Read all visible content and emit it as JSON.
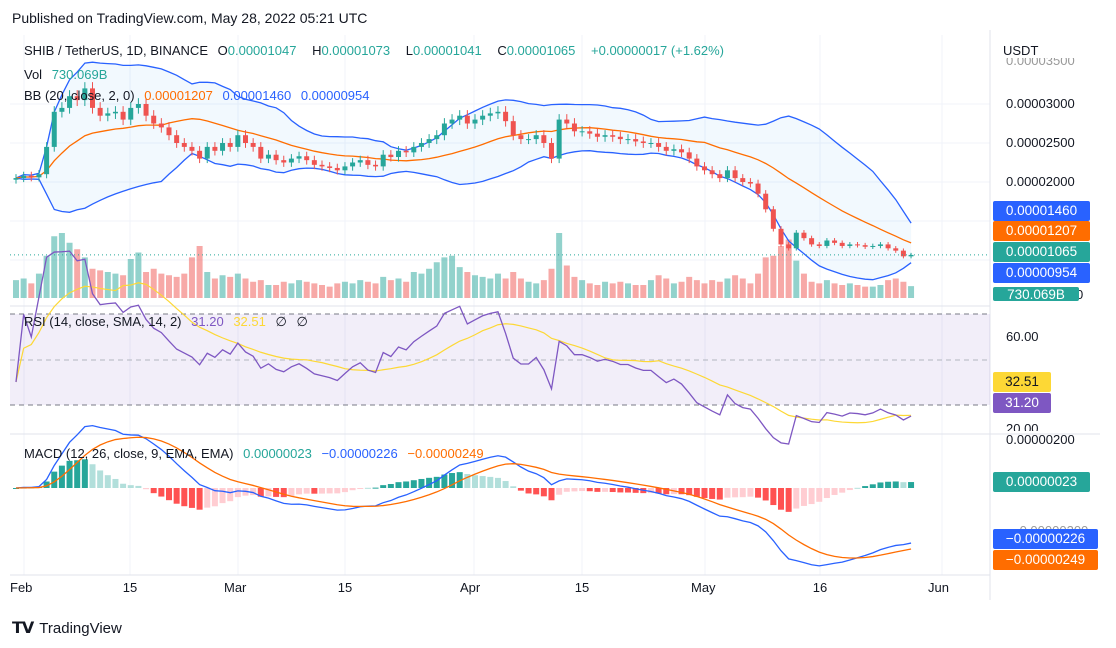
{
  "header": {
    "published": "Published on TradingView.com, May 28, 2022 05:21 UTC"
  },
  "legend": {
    "symbol": "SHIB / TetherUS, 1D, BINANCE",
    "o_label": "O",
    "o": "0.00001047",
    "h_label": "H",
    "h": "0.00001073",
    "l_label": "L",
    "l": "0.00001041",
    "c_label": "C",
    "c": "0.00001065",
    "change": "+0.00000017 (+1.62%)",
    "vol_label": "Vol",
    "vol": "730.069B",
    "bb_label": "BB (20, close, 2, 0)",
    "bb_basis": "0.00001207",
    "bb_upper": "0.00001460",
    "bb_lower": "0.00000954",
    "rsi_label": "RSI (14, close, SMA, 14, 2)",
    "rsi": "31.20",
    "rsi_sma": "32.51",
    "rsi_x1": "∅",
    "rsi_x2": "∅",
    "macd_label": "MACD (12, 26, close, 9, EMA, EMA)",
    "macd_hist": "0.00000023",
    "macd": "−0.00000226",
    "macd_signal": "−0.00000249"
  },
  "price_axis": {
    "unit": "USDT",
    "ticks": [
      "0.00003500",
      "0.00003000",
      "0.00002500",
      "0.00002000"
    ],
    "vol_zero": "0"
  },
  "tags": {
    "bb_upper": "0.00001460",
    "bb_basis": "0.00001207",
    "last": "0.00001065",
    "bb_lower": "0.00000954",
    "vol": "730.069B",
    "rsi_sma": "32.51",
    "rsi": "31.20",
    "macd_hist": "0.00000023",
    "macd": "−0.00000226",
    "macd_signal": "−0.00000249"
  },
  "rsi_axis": {
    "ticks": [
      "60.00",
      "20.00"
    ]
  },
  "macd_axis": {
    "ticks": [
      "0.00000200",
      "−0.00000200"
    ]
  },
  "time_axis": [
    "Feb",
    "15",
    "Mar",
    "15",
    "Apr",
    "15",
    "May",
    "16",
    "Jun"
  ],
  "colors": {
    "up": "#26a69a",
    "down": "#ef5350",
    "bb_band": "#2962ff",
    "bb_basis": "#ff6d00",
    "rsi": "#7e57c2",
    "rsi_sma": "#fdd835",
    "macd": "#2962ff",
    "signal": "#ff6d00"
  },
  "chart_data": {
    "type": "candlestick",
    "symbol": "SHIB / TetherUS",
    "interval": "1D",
    "start_date": "2022-01-31",
    "end_date": "2022-05-28",
    "close": [
      2.05e-05,
      2.08e-05,
      2.06e-05,
      2.1e-05,
      2.45e-05,
      2.9e-05,
      2.95e-05,
      3.1e-05,
      3.05e-05,
      3.2e-05,
      2.95e-05,
      2.85e-05,
      2.88e-05,
      2.9e-05,
      2.8e-05,
      2.95e-05,
      3e-05,
      2.85e-05,
      2.75e-05,
      2.7e-05,
      2.6e-05,
      2.5e-05,
      2.45e-05,
      2.4e-05,
      2.3e-05,
      2.45e-05,
      2.4e-05,
      2.5e-05,
      2.45e-05,
      2.6e-05,
      2.5e-05,
      2.45e-05,
      2.3e-05,
      2.35e-05,
      2.28e-05,
      2.25e-05,
      2.3e-05,
      2.33e-05,
      2.28e-05,
      2.22e-05,
      2.2e-05,
      2.18e-05,
      2.15e-05,
      2.2e-05,
      2.25e-05,
      2.28e-05,
      2.22e-05,
      2.2e-05,
      2.35e-05,
      2.32e-05,
      2.4e-05,
      2.38e-05,
      2.45e-05,
      2.5e-05,
      2.55e-05,
      2.6e-05,
      2.75e-05,
      2.8e-05,
      2.85e-05,
      2.75e-05,
      2.8e-05,
      2.85e-05,
      2.88e-05,
      2.9e-05,
      2.78e-05,
      2.6e-05,
      2.55e-05,
      2.55e-05,
      2.6e-05,
      2.5e-05,
      2.3e-05,
      2.8e-05,
      2.75e-05,
      2.65e-05,
      2.65e-05,
      2.62e-05,
      2.58e-05,
      2.6e-05,
      2.58e-05,
      2.55e-05,
      2.55e-05,
      2.52e-05,
      2.5e-05,
      2.5e-05,
      2.45e-05,
      2.4e-05,
      2.42e-05,
      2.38e-05,
      2.3e-05,
      2.2e-05,
      2.15e-05,
      2.1e-05,
      2.05e-05,
      2.15e-05,
      2.05e-05,
      2e-05,
      1.98e-05,
      1.85e-05,
      1.65e-05,
      1.4e-05,
      1.2e-05,
      1.15e-05,
      1.35e-05,
      1.28e-05,
      1.2e-05,
      1.18e-05,
      1.25e-05,
      1.22e-05,
      1.18e-05,
      1.2e-05,
      1.19e-05,
      1.17e-05,
      1.18e-05,
      1.2e-05,
      1.15e-05,
      1.12e-05,
      1.047e-05,
      1.065e-05
    ],
    "volume_B": [
      1100,
      1200,
      900,
      1500,
      2600,
      3800,
      4000,
      3400,
      3000,
      2500,
      1800,
      1700,
      1600,
      1500,
      1400,
      2400,
      2800,
      1600,
      1800,
      1500,
      1400,
      1300,
      1500,
      2500,
      3200,
      1600,
      1200,
      1400,
      1300,
      1500,
      1200,
      1000,
      1100,
      800,
      800,
      1000,
      900,
      1100,
      1000,
      900,
      800,
      700,
      900,
      1000,
      900,
      1100,
      1000,
      900,
      1300,
      1100,
      1200,
      1000,
      1600,
      1500,
      1800,
      2200,
      2500,
      2600,
      1900,
      1600,
      1400,
      1300,
      1200,
      1500,
      1200,
      1600,
      1200,
      1000,
      900,
      1100,
      1800,
      4000,
      2000,
      1300,
      1100,
      900,
      800,
      1000,
      900,
      1000,
      900,
      800,
      800,
      1100,
      1400,
      1200,
      900,
      1000,
      1300,
      1100,
      900,
      1100,
      1000,
      1200,
      1400,
      1200,
      900,
      1500,
      2500,
      2600,
      3200,
      3600,
      2300,
      1500,
      1000,
      900,
      1100,
      900,
      800,
      900,
      800,
      700,
      700,
      800,
      1100,
      1200,
      1000,
      730.069
    ],
    "indicators": [
      "Bollinger Bands (20, 2)",
      "RSI (14) with SMA 14",
      "MACD (12, 26, 9)"
    ]
  }
}
